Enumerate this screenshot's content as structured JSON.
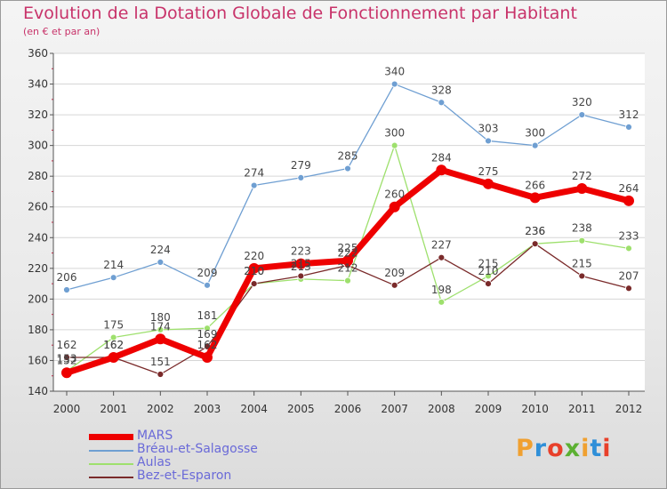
{
  "title": "Evolution de la Dotation Globale de Fonctionnement par Habitant",
  "subtitle": "(en € et par an)",
  "logo": "Proxiti",
  "chart_data": {
    "type": "line",
    "categories": [
      "2000",
      "2001",
      "2002",
      "2003",
      "2004",
      "2005",
      "2006",
      "2007",
      "2008",
      "2009",
      "2010",
      "2011",
      "2012"
    ],
    "ylim": [
      140,
      360
    ],
    "yticks": [
      140,
      160,
      180,
      200,
      220,
      240,
      260,
      280,
      300,
      320,
      340,
      360
    ],
    "series": [
      {
        "name": "MARS",
        "color": "#ee0000",
        "values": [
          152,
          162,
          174,
          162,
          220,
          223,
          225,
          260,
          284,
          275,
          266,
          272,
          264
        ]
      },
      {
        "name": "Bréau-et-Salagosse",
        "color": "#6f9fd2",
        "values": [
          206,
          214,
          224,
          209,
          274,
          279,
          285,
          340,
          328,
          303,
          300,
          320,
          312
        ]
      },
      {
        "name": "Aulas",
        "color": "#9ee06d",
        "values": [
          153,
          175,
          180,
          181,
          210,
          213,
          212,
          300,
          198,
          215,
          236,
          238,
          233
        ]
      },
      {
        "name": "Bez-et-Esparon",
        "color": "#7a2a2a",
        "values": [
          162,
          162,
          151,
          169,
          210,
          215,
          222,
          209,
          227,
          210,
          236,
          215,
          207
        ]
      }
    ]
  }
}
